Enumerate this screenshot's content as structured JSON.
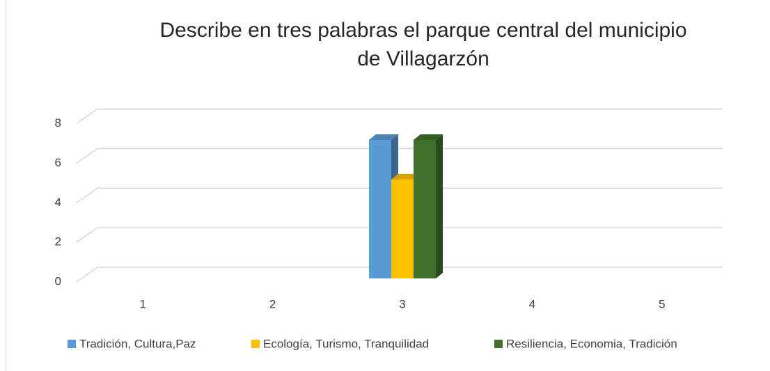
{
  "chart_data": {
    "type": "bar3d",
    "title": [
      "Describe en tres palabras el parque central del municipio",
      "de Villagarzón"
    ],
    "categories": [
      "1",
      "2",
      "3",
      "4",
      "5"
    ],
    "series": [
      {
        "name": "Tradición, Cultura,Paz",
        "color": "#5b9bd5",
        "values": [
          null,
          null,
          7,
          null,
          null
        ]
      },
      {
        "name": "Ecología, Turismo, Tranquilidad",
        "color": "#ffc000",
        "values": [
          null,
          null,
          5,
          null,
          null
        ]
      },
      {
        "name": "Resiliencia, Economia, Tradición",
        "color": "#41702c",
        "values": [
          null,
          null,
          7,
          null,
          null
        ]
      }
    ],
    "ylim": [
      0,
      8
    ],
    "yticks": [
      0,
      2,
      4,
      6,
      8
    ],
    "grid": true,
    "legend": "bottom"
  }
}
